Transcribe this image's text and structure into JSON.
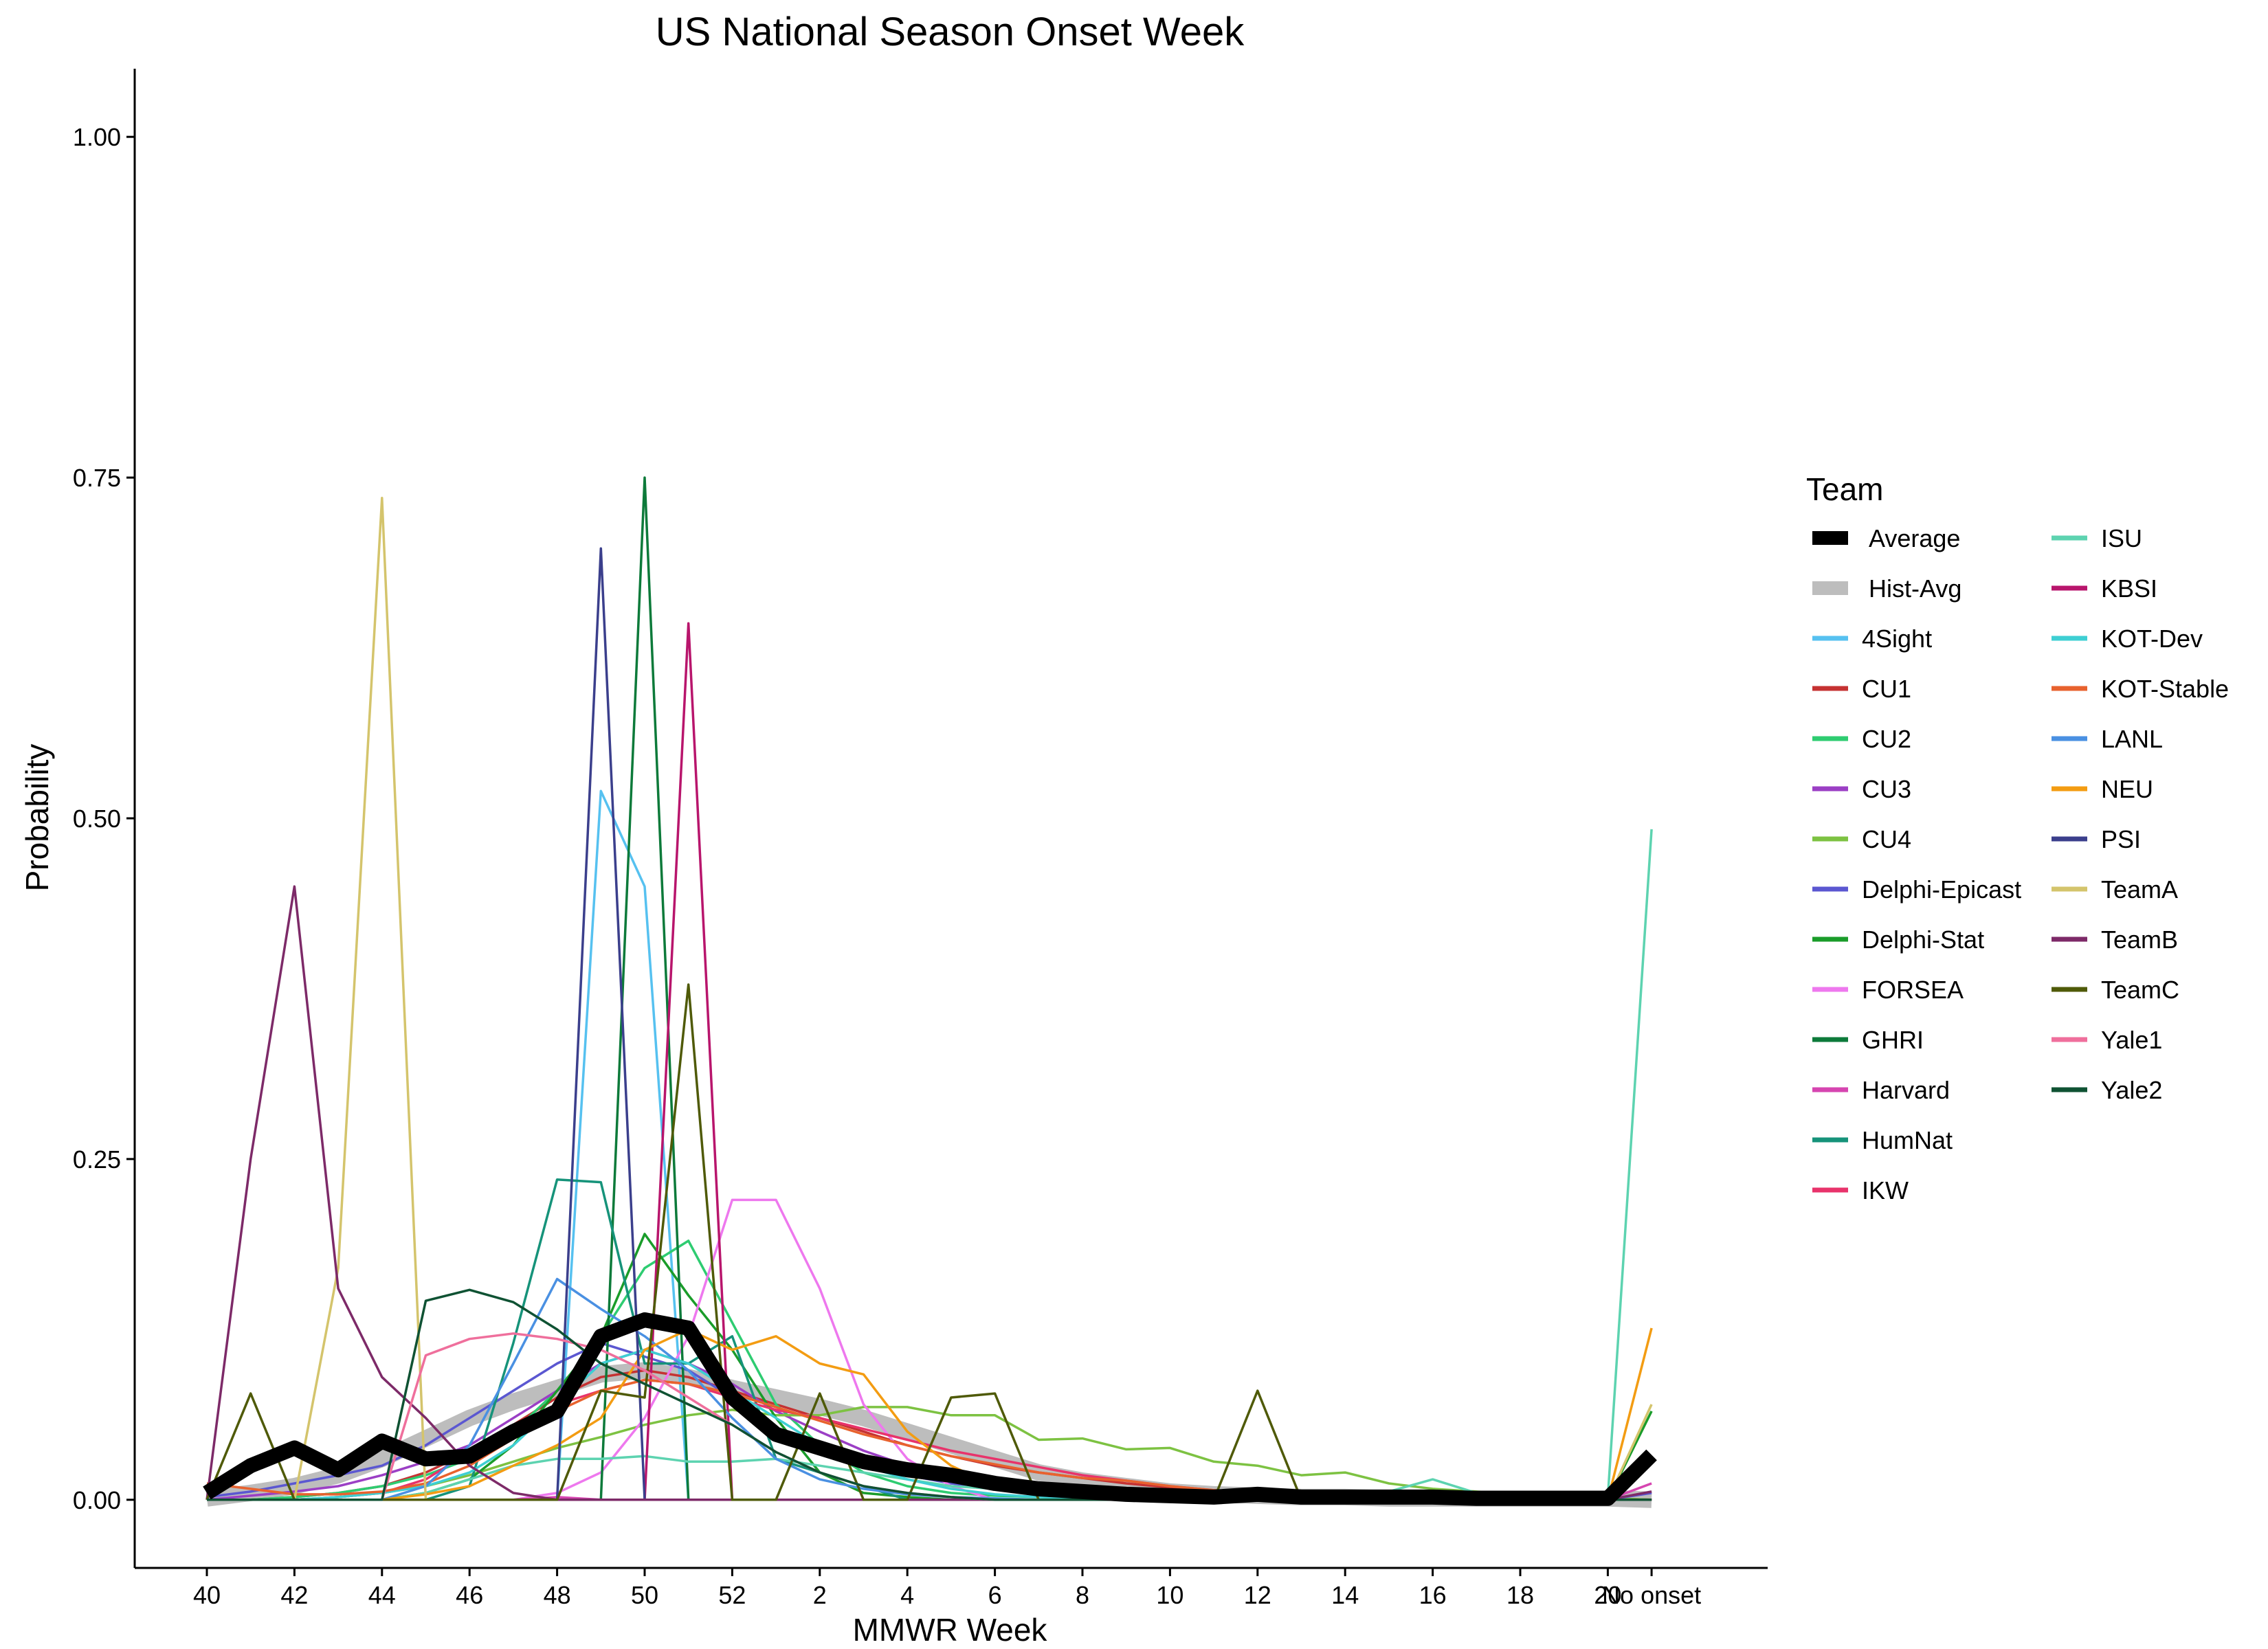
{
  "chart_data": {
    "type": "line",
    "title": "US National Season Onset Week",
    "xlabel": "MMWR Week",
    "ylabel": "Probability",
    "ylim": [
      -0.05,
      1.05
    ],
    "grid": false,
    "legend_title": "Team",
    "legend_position": "right",
    "categories": [
      "40",
      "41",
      "42",
      "43",
      "44",
      "45",
      "46",
      "47",
      "48",
      "49",
      "50",
      "51",
      "52",
      "1",
      "2",
      "3",
      "4",
      "5",
      "6",
      "7",
      "8",
      "9",
      "10",
      "11",
      "12",
      "13",
      "14",
      "15",
      "16",
      "17",
      "18",
      "19",
      "20",
      "No onset"
    ],
    "x_tick_labels": [
      "40",
      "42",
      "44",
      "46",
      "48",
      "50",
      "52",
      "2",
      "4",
      "6",
      "8",
      "10",
      "12",
      "14",
      "16",
      "18",
      "20",
      "No onset"
    ],
    "y_ticks": [
      0.0,
      0.25,
      0.5,
      0.75,
      1.0
    ],
    "y_tick_labels": [
      "0.00",
      "0.25",
      "0.50",
      "0.75",
      "1.00"
    ],
    "series": [
      {
        "name": "Average",
        "color": "#000000",
        "values": [
          0.005,
          0.025,
          0.038,
          0.022,
          0.043,
          0.03,
          0.032,
          0.05,
          0.065,
          0.12,
          0.132,
          0.126,
          0.075,
          0.048,
          0.038,
          0.028,
          0.022,
          0.018,
          0.012,
          0.008,
          0.006,
          0.004,
          0.003,
          0.002,
          0.004,
          0.002,
          0.002,
          0.002,
          0.002,
          0.001,
          0.001,
          0.001,
          0.001,
          0.033
        ]
      },
      {
        "name": "Hist-Avg",
        "color": "#bdbdbd",
        "values": [
          0.001,
          0.005,
          0.01,
          0.018,
          0.03,
          0.045,
          0.06,
          0.072,
          0.082,
          0.092,
          0.095,
          0.09,
          0.082,
          0.075,
          0.068,
          0.06,
          0.05,
          0.04,
          0.03,
          0.02,
          0.014,
          0.01,
          0.006,
          0.004,
          0.003,
          0.002,
          0.002,
          0.001,
          0.001,
          0.001,
          0.001,
          0.001,
          0.001,
          0.0
        ]
      },
      {
        "name": "4Sight",
        "color": "#56c1f0",
        "values": [
          0.0,
          0.0,
          0.0,
          0.0,
          0.0,
          0.0,
          0.0,
          0.0,
          0.0,
          0.52,
          0.45,
          0.0,
          0.0,
          0.0,
          0.0,
          0.0,
          0.0,
          0.0,
          0.0,
          0.0,
          0.0,
          0.0,
          0.0,
          0.0,
          0.0,
          0.0,
          0.0,
          0.0,
          0.0,
          0.0,
          0.0,
          0.0,
          0.0,
          0.0
        ]
      },
      {
        "name": "CU1",
        "color": "#c53232",
        "values": [
          0.0,
          0.0,
          0.002,
          0.005,
          0.01,
          0.02,
          0.035,
          0.055,
          0.075,
          0.09,
          0.095,
          0.09,
          0.08,
          0.07,
          0.06,
          0.05,
          0.04,
          0.032,
          0.025,
          0.02,
          0.016,
          0.012,
          0.009,
          0.006,
          0.004,
          0.003,
          0.002,
          0.002,
          0.001,
          0.001,
          0.001,
          0.001,
          0.001,
          0.0
        ]
      },
      {
        "name": "CU2",
        "color": "#2ecc71",
        "values": [
          0.0,
          0.0,
          0.002,
          0.005,
          0.01,
          0.018,
          0.03,
          0.05,
          0.08,
          0.12,
          0.17,
          0.19,
          0.13,
          0.07,
          0.04,
          0.02,
          0.01,
          0.005,
          0.003,
          0.002,
          0.001,
          0.001,
          0.0,
          0.0,
          0.0,
          0.0,
          0.0,
          0.0,
          0.0,
          0.0,
          0.0,
          0.0,
          0.0,
          0.0
        ]
      },
      {
        "name": "CU3",
        "color": "#9b3fc5",
        "values": [
          0.0,
          0.003,
          0.006,
          0.01,
          0.018,
          0.028,
          0.04,
          0.06,
          0.08,
          0.1,
          0.11,
          0.1,
          0.085,
          0.065,
          0.05,
          0.036,
          0.025,
          0.016,
          0.01,
          0.006,
          0.004,
          0.002,
          0.001,
          0.001,
          0.0,
          0.0,
          0.0,
          0.0,
          0.0,
          0.0,
          0.0,
          0.0,
          0.0,
          0.0
        ]
      },
      {
        "name": "CU4",
        "color": "#7dc242",
        "values": [
          0.0,
          0.0,
          0.0,
          0.002,
          0.005,
          0.01,
          0.018,
          0.028,
          0.038,
          0.046,
          0.055,
          0.062,
          0.066,
          0.062,
          0.062,
          0.068,
          0.068,
          0.062,
          0.062,
          0.044,
          0.045,
          0.037,
          0.038,
          0.028,
          0.025,
          0.018,
          0.02,
          0.012,
          0.008,
          0.006,
          0.002,
          0.001,
          0.001,
          0.0
        ]
      },
      {
        "name": "Delphi-Epicast",
        "color": "#5b57d1",
        "values": [
          0.002,
          0.006,
          0.012,
          0.018,
          0.025,
          0.04,
          0.06,
          0.08,
          0.1,
          0.115,
          0.105,
          0.095,
          0.075,
          0.05,
          0.035,
          0.025,
          0.018,
          0.012,
          0.008,
          0.006,
          0.004,
          0.003,
          0.002,
          0.001,
          0.001,
          0.001,
          0.0,
          0.0,
          0.0,
          0.0,
          0.0,
          0.0,
          0.0,
          0.005
        ]
      },
      {
        "name": "Delphi-Stat",
        "color": "#1a9c2a",
        "values": [
          0.0,
          0.0,
          0.0,
          0.0,
          0.0,
          0.005,
          0.015,
          0.04,
          0.08,
          0.12,
          0.195,
          0.15,
          0.11,
          0.06,
          0.02,
          0.005,
          0.002,
          0.0,
          0.0,
          0.0,
          0.0,
          0.0,
          0.0,
          0.0,
          0.0,
          0.0,
          0.0,
          0.0,
          0.0,
          0.0,
          0.0,
          0.0,
          0.0,
          0.065
        ]
      },
      {
        "name": "FORSEA",
        "color": "#ee78ee",
        "values": [
          0.0,
          0.0,
          0.0,
          0.0,
          0.0,
          0.0,
          0.0,
          0.0,
          0.005,
          0.02,
          0.06,
          0.12,
          0.22,
          0.22,
          0.155,
          0.07,
          0.03,
          0.01,
          0.0,
          0.0,
          0.0,
          0.0,
          0.0,
          0.0,
          0.0,
          0.0,
          0.0,
          0.0,
          0.0,
          0.0,
          0.0,
          0.0,
          0.0,
          0.0
        ]
      },
      {
        "name": "GHRI",
        "color": "#0d7a3a",
        "values": [
          0.0,
          0.0,
          0.0,
          0.0,
          0.0,
          0.0,
          0.0,
          0.0,
          0.0,
          0.0,
          0.75,
          0.0,
          0.0,
          0.0,
          0.0,
          0.0,
          0.0,
          0.0,
          0.0,
          0.0,
          0.0,
          0.0,
          0.0,
          0.0,
          0.0,
          0.0,
          0.0,
          0.0,
          0.0,
          0.0,
          0.0,
          0.0,
          0.0,
          0.0
        ]
      },
      {
        "name": "Harvard",
        "color": "#d645b0",
        "values": [
          0.0,
          0.0,
          0.0,
          0.0,
          0.0,
          0.0,
          0.0,
          0.0,
          0.002,
          0.0,
          0.0,
          0.0,
          0.0,
          0.0,
          0.0,
          0.0,
          0.0,
          0.0,
          0.0,
          0.0,
          0.0,
          0.0,
          0.0,
          0.0,
          0.0,
          0.0,
          0.0,
          0.0,
          0.0,
          0.0,
          0.0,
          0.0,
          0.0,
          0.012
        ]
      },
      {
        "name": "HumNat",
        "color": "#16937a",
        "values": [
          0.0,
          0.0,
          0.0,
          0.0,
          0.0,
          0.0,
          0.01,
          0.115,
          0.235,
          0.233,
          0.1,
          0.1,
          0.12,
          0.03,
          0.02,
          0.01,
          0.0,
          0.0,
          0.0,
          0.0,
          0.0,
          0.0,
          0.0,
          0.0,
          0.0,
          0.0,
          0.0,
          0.0,
          0.0,
          0.0,
          0.0,
          0.0,
          0.0,
          0.0
        ]
      },
      {
        "name": "IKW",
        "color": "#e8336b",
        "values": [
          0.0,
          0.0,
          0.0,
          0.002,
          0.005,
          0.015,
          0.035,
          0.055,
          0.07,
          0.08,
          0.088,
          0.085,
          0.075,
          0.066,
          0.06,
          0.052,
          0.044,
          0.036,
          0.03,
          0.024,
          0.018,
          0.014,
          0.01,
          0.007,
          0.005,
          0.003,
          0.002,
          0.001,
          0.001,
          0.001,
          0.0,
          0.0,
          0.0,
          0.0
        ]
      },
      {
        "name": "ISU",
        "color": "#5dd3b0",
        "values": [
          0.0,
          0.0,
          0.0,
          0.0,
          0.0,
          0.005,
          0.015,
          0.025,
          0.03,
          0.03,
          0.032,
          0.028,
          0.028,
          0.03,
          0.025,
          0.02,
          0.015,
          0.01,
          0.008,
          0.006,
          0.005,
          0.004,
          0.004,
          0.004,
          0.003,
          0.003,
          0.004,
          0.006,
          0.015,
          0.005,
          0.003,
          0.002,
          0.002,
          0.492
        ]
      },
      {
        "name": "KBSI",
        "color": "#b8156c",
        "values": [
          0.0,
          0.0,
          0.0,
          0.0,
          0.0,
          0.0,
          0.0,
          0.0,
          0.0,
          0.0,
          0.0,
          0.643,
          0.0,
          0.0,
          0.0,
          0.0,
          0.0,
          0.0,
          0.0,
          0.0,
          0.0,
          0.0,
          0.0,
          0.0,
          0.0,
          0.0,
          0.0,
          0.0,
          0.0,
          0.0,
          0.0,
          0.0,
          0.0,
          0.0
        ]
      },
      {
        "name": "KOT-Dev",
        "color": "#3ecfd3",
        "values": [
          0.0,
          0.0,
          0.0,
          0.002,
          0.005,
          0.01,
          0.02,
          0.04,
          0.07,
          0.1,
          0.11,
          0.1,
          0.08,
          0.06,
          0.04,
          0.025,
          0.015,
          0.008,
          0.004,
          0.002,
          0.001,
          0.0,
          0.0,
          0.0,
          0.0,
          0.0,
          0.0,
          0.0,
          0.0,
          0.0,
          0.0,
          0.0,
          0.0,
          0.0
        ]
      },
      {
        "name": "KOT-Stable",
        "color": "#e8622e",
        "values": [
          0.012,
          0.008,
          0.004,
          0.004,
          0.006,
          0.012,
          0.025,
          0.045,
          0.065,
          0.08,
          0.088,
          0.085,
          0.078,
          0.068,
          0.058,
          0.048,
          0.04,
          0.032,
          0.026,
          0.02,
          0.016,
          0.014,
          0.01,
          0.007,
          0.005,
          0.003,
          0.002,
          0.001,
          0.001,
          0.001,
          0.001,
          0.0,
          0.0,
          0.0
        ]
      },
      {
        "name": "LANL",
        "color": "#4a90e2",
        "values": [
          0.0,
          0.0,
          0.0,
          0.0,
          0.0,
          0.01,
          0.04,
          0.1,
          0.162,
          0.14,
          0.12,
          0.095,
          0.06,
          0.03,
          0.015,
          0.008,
          0.004,
          0.002,
          0.001,
          0.0,
          0.0,
          0.0,
          0.0,
          0.0,
          0.0,
          0.0,
          0.0,
          0.0,
          0.0,
          0.0,
          0.0,
          0.0,
          0.0,
          0.0
        ]
      },
      {
        "name": "NEU",
        "color": "#f39c12",
        "values": [
          0.0,
          0.0,
          0.0,
          0.0,
          0.0,
          0.004,
          0.01,
          0.025,
          0.04,
          0.06,
          0.11,
          0.125,
          0.11,
          0.12,
          0.1,
          0.092,
          0.05,
          0.025,
          0.01,
          0.005,
          0.002,
          0.001,
          0.0,
          0.0,
          0.0,
          0.0,
          0.0,
          0.0,
          0.0,
          0.0,
          0.0,
          0.0,
          0.0,
          0.126
        ]
      },
      {
        "name": "PSI",
        "color": "#3b3f8c",
        "values": [
          0.0,
          0.0,
          0.0,
          0.0,
          0.0,
          0.0,
          0.0,
          0.0,
          0.0,
          0.698,
          0.0,
          0.0,
          0.0,
          0.0,
          0.0,
          0.0,
          0.0,
          0.0,
          0.0,
          0.0,
          0.0,
          0.0,
          0.0,
          0.0,
          0.0,
          0.0,
          0.0,
          0.0,
          0.0,
          0.0,
          0.0,
          0.0,
          0.0,
          0.0
        ]
      },
      {
        "name": "TeamA",
        "color": "#d4c46c",
        "values": [
          0.0,
          0.0,
          0.0,
          0.17,
          0.735,
          0.0,
          0.0,
          0.0,
          0.0,
          0.0,
          0.0,
          0.0,
          0.0,
          0.0,
          0.0,
          0.0,
          0.0,
          0.0,
          0.0,
          0.0,
          0.0,
          0.0,
          0.0,
          0.0,
          0.0,
          0.0,
          0.0,
          0.0,
          0.0,
          0.0,
          0.0,
          0.0,
          0.0,
          0.07
        ]
      },
      {
        "name": "TeamB",
        "color": "#7d2a68",
        "values": [
          0.0,
          0.25,
          0.45,
          0.155,
          0.09,
          0.06,
          0.025,
          0.005,
          0.0,
          0.0,
          0.0,
          0.0,
          0.0,
          0.0,
          0.0,
          0.0,
          0.0,
          0.0,
          0.0,
          0.0,
          0.0,
          0.0,
          0.0,
          0.0,
          0.0,
          0.0,
          0.0,
          0.0,
          0.0,
          0.0,
          0.0,
          0.0,
          0.0,
          0.006
        ]
      },
      {
        "name": "TeamC",
        "color": "#4f5a08",
        "values": [
          0.0,
          0.078,
          0.0,
          0.0,
          0.0,
          0.0,
          0.0,
          0.0,
          0.0,
          0.08,
          0.075,
          0.378,
          0.0,
          0.0,
          0.078,
          0.0,
          0.0,
          0.075,
          0.078,
          0.0,
          0.0,
          0.0,
          0.0,
          0.0,
          0.08,
          0.0,
          0.0,
          0.0,
          0.0,
          0.0,
          0.0,
          0.0,
          0.0,
          0.0
        ]
      },
      {
        "name": "Yale1",
        "color": "#ef6f9c",
        "values": [
          0.0,
          0.0,
          0.0,
          0.0,
          0.0,
          0.106,
          0.118,
          0.122,
          0.118,
          0.11,
          0.095,
          0.075,
          0.055,
          0.035,
          0.02,
          0.01,
          0.005,
          0.002,
          0.0,
          0.0,
          0.0,
          0.0,
          0.0,
          0.0,
          0.0,
          0.0,
          0.0,
          0.0,
          0.0,
          0.0,
          0.0,
          0.0,
          0.0,
          0.0
        ]
      },
      {
        "name": "Yale2",
        "color": "#0f5233",
        "values": [
          0.0,
          0.0,
          0.0,
          0.0,
          0.0,
          0.146,
          0.154,
          0.145,
          0.125,
          0.1,
          0.085,
          0.07,
          0.055,
          0.035,
          0.02,
          0.01,
          0.005,
          0.002,
          0.0,
          0.0,
          0.0,
          0.0,
          0.0,
          0.0,
          0.0,
          0.0,
          0.0,
          0.0,
          0.0,
          0.0,
          0.0,
          0.0,
          0.0,
          0.0
        ]
      }
    ]
  }
}
